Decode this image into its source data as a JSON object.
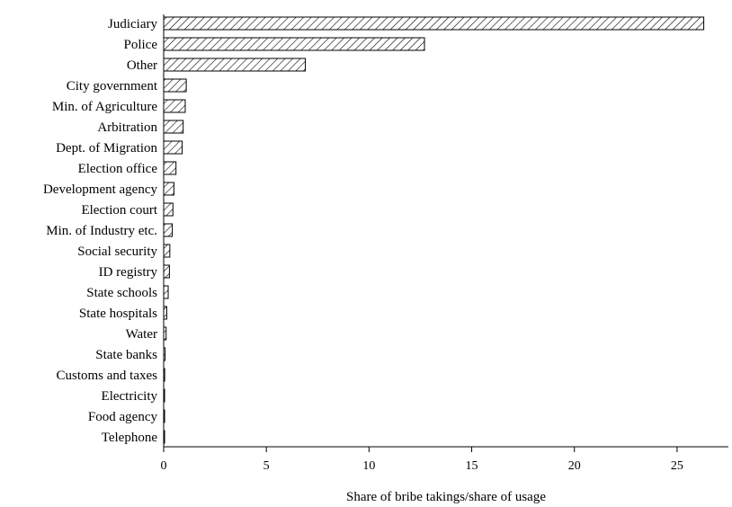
{
  "chart_data": {
    "type": "bar",
    "orientation": "horizontal",
    "categories": [
      "Judiciary",
      "Police",
      "Other",
      "City government",
      "Min. of Agriculture",
      "Arbitration",
      "Dept. of Migration",
      "Election office",
      "Development agency",
      "Election court",
      "Min. of Industry etc.",
      "Social security",
      "ID registry",
      "State schools",
      "State hospitals",
      "Water",
      "State banks",
      "Customs and taxes",
      "Electricity",
      "Food agency",
      "Telephone"
    ],
    "values": [
      26.3,
      12.7,
      6.9,
      1.1,
      1.05,
      0.95,
      0.9,
      0.6,
      0.5,
      0.45,
      0.42,
      0.3,
      0.28,
      0.22,
      0.15,
      0.12,
      0.07,
      0.05,
      0.04,
      0.03,
      0.02
    ],
    "xlabel": "Share of bribe takings/share of usage",
    "ylabel": "",
    "title": "",
    "xlim": [
      0,
      27.5
    ],
    "xticks": [
      0,
      5,
      10,
      15,
      20,
      25
    ],
    "grid": false,
    "legend": "none",
    "bar_fill": "diagonal-hatch",
    "colors": {
      "bar_stroke": "#000000",
      "hatch": "#000000",
      "background": "#ffffff"
    }
  }
}
